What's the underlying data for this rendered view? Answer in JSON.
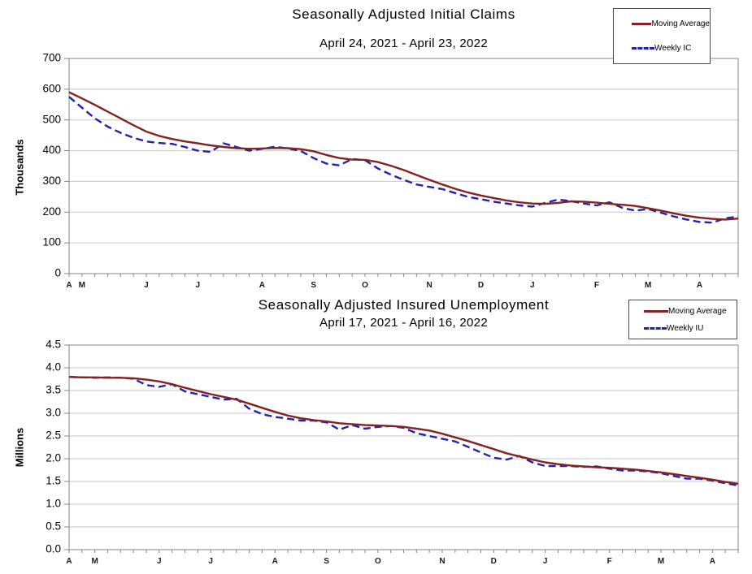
{
  "page_background": "#ffffff",
  "chart_data": [
    {
      "type": "line",
      "title": "Seasonally Adjusted Initial Claims",
      "subtitle": "April 24, 2021 - April 23, 2022",
      "ylabel": "Thousands",
      "axis": {
        "ylim": [
          0,
          700
        ],
        "ytick_step": 100,
        "grid": true
      },
      "y_tick_labels": [
        "0",
        "100",
        "200",
        "300",
        "400",
        "500",
        "600",
        "700"
      ],
      "weeks": 53,
      "x_month_labels": [
        {
          "label": "A",
          "week": 0
        },
        {
          "label": "M",
          "week": 1
        },
        {
          "label": "J",
          "week": 6
        },
        {
          "label": "J",
          "week": 10
        },
        {
          "label": "A",
          "week": 15
        },
        {
          "label": "S",
          "week": 19
        },
        {
          "label": "O",
          "week": 23
        },
        {
          "label": "N",
          "week": 28
        },
        {
          "label": "D",
          "week": 32
        },
        {
          "label": "J",
          "week": 36
        },
        {
          "label": "F",
          "week": 41
        },
        {
          "label": "M",
          "week": 45
        },
        {
          "label": "A",
          "week": 49
        }
      ],
      "legend_position": "top-right",
      "series": [
        {
          "name": "Moving Average",
          "style": "solid",
          "color": "#832222",
          "values": [
            590,
            570,
            549,
            527,
            505,
            483,
            462,
            448,
            438,
            430,
            424,
            417,
            412,
            408,
            406,
            407,
            409,
            408,
            405,
            398,
            386,
            376,
            371,
            370,
            363,
            351,
            337,
            321,
            305,
            290,
            276,
            264,
            254,
            246,
            238,
            232,
            228,
            227,
            230,
            235,
            234,
            231,
            227,
            224,
            220,
            213,
            205,
            196,
            188,
            182,
            178,
            176,
            179
          ]
        },
        {
          "name": "Weekly IC",
          "style": "dashed",
          "color": "#2222aa",
          "values": [
            575,
            540,
            505,
            478,
            458,
            442,
            430,
            425,
            422,
            412,
            400,
            396,
            424,
            412,
            400,
            406,
            413,
            407,
            399,
            376,
            358,
            352,
            373,
            369,
            342,
            322,
            305,
            290,
            282,
            275,
            262,
            250,
            242,
            234,
            228,
            222,
            218,
            230,
            241,
            236,
            228,
            222,
            232,
            214,
            205,
            210,
            198,
            186,
            176,
            168,
            166,
            180,
            186
          ]
        }
      ]
    },
    {
      "type": "line",
      "title": "Seasonally Adjusted Insured Unemployment",
      "subtitle": "April 17, 2021 - April 16, 2022",
      "ylabel": "Millions",
      "axis": {
        "ylim": [
          0,
          4.5
        ],
        "ytick_step": 0.5,
        "grid": true
      },
      "y_tick_labels": [
        "0.0",
        "0.5",
        "1.0",
        "1.5",
        "2.0",
        "2.5",
        "3.0",
        "3.5",
        "4.0",
        "4.5"
      ],
      "weeks": 53,
      "x_month_labels": [
        {
          "label": "A",
          "week": 0
        },
        {
          "label": "M",
          "week": 2
        },
        {
          "label": "J",
          "week": 7
        },
        {
          "label": "J",
          "week": 11
        },
        {
          "label": "A",
          "week": 16
        },
        {
          "label": "S",
          "week": 20
        },
        {
          "label": "O",
          "week": 24
        },
        {
          "label": "N",
          "week": 29
        },
        {
          "label": "D",
          "week": 33
        },
        {
          "label": "J",
          "week": 37
        },
        {
          "label": "F",
          "week": 42
        },
        {
          "label": "M",
          "week": 46
        },
        {
          "label": "A",
          "week": 50
        }
      ],
      "legend_position": "top-right",
      "series": [
        {
          "name": "Moving Average",
          "style": "solid",
          "color": "#832222",
          "values": [
            3.8,
            3.79,
            3.79,
            3.78,
            3.78,
            3.77,
            3.74,
            3.7,
            3.64,
            3.56,
            3.49,
            3.42,
            3.36,
            3.3,
            3.21,
            3.12,
            3.03,
            2.95,
            2.89,
            2.85,
            2.82,
            2.78,
            2.76,
            2.74,
            2.73,
            2.72,
            2.7,
            2.66,
            2.62,
            2.55,
            2.47,
            2.39,
            2.3,
            2.21,
            2.12,
            2.05,
            1.98,
            1.92,
            1.88,
            1.85,
            1.83,
            1.81,
            1.8,
            1.78,
            1.76,
            1.73,
            1.7,
            1.66,
            1.62,
            1.58,
            1.54,
            1.49,
            1.45
          ]
        },
        {
          "name": "Weekly IU",
          "style": "dashed",
          "color": "#2222aa",
          "values": [
            3.8,
            3.79,
            3.78,
            3.79,
            3.78,
            3.76,
            3.62,
            3.58,
            3.64,
            3.48,
            3.42,
            3.36,
            3.3,
            3.32,
            3.1,
            2.98,
            2.92,
            2.88,
            2.84,
            2.84,
            2.8,
            2.64,
            2.74,
            2.66,
            2.7,
            2.72,
            2.68,
            2.56,
            2.5,
            2.44,
            2.38,
            2.26,
            2.14,
            2.02,
            1.98,
            2.06,
            1.92,
            1.84,
            1.84,
            1.84,
            1.82,
            1.83,
            1.78,
            1.74,
            1.74,
            1.72,
            1.68,
            1.62,
            1.56,
            1.56,
            1.52,
            1.46,
            1.41
          ]
        }
      ]
    }
  ],
  "style_colors": {
    "grid": "#c8c8c8",
    "axis_border": "#858585",
    "moving_average": "#832222",
    "weekly": "#2222aa"
  }
}
